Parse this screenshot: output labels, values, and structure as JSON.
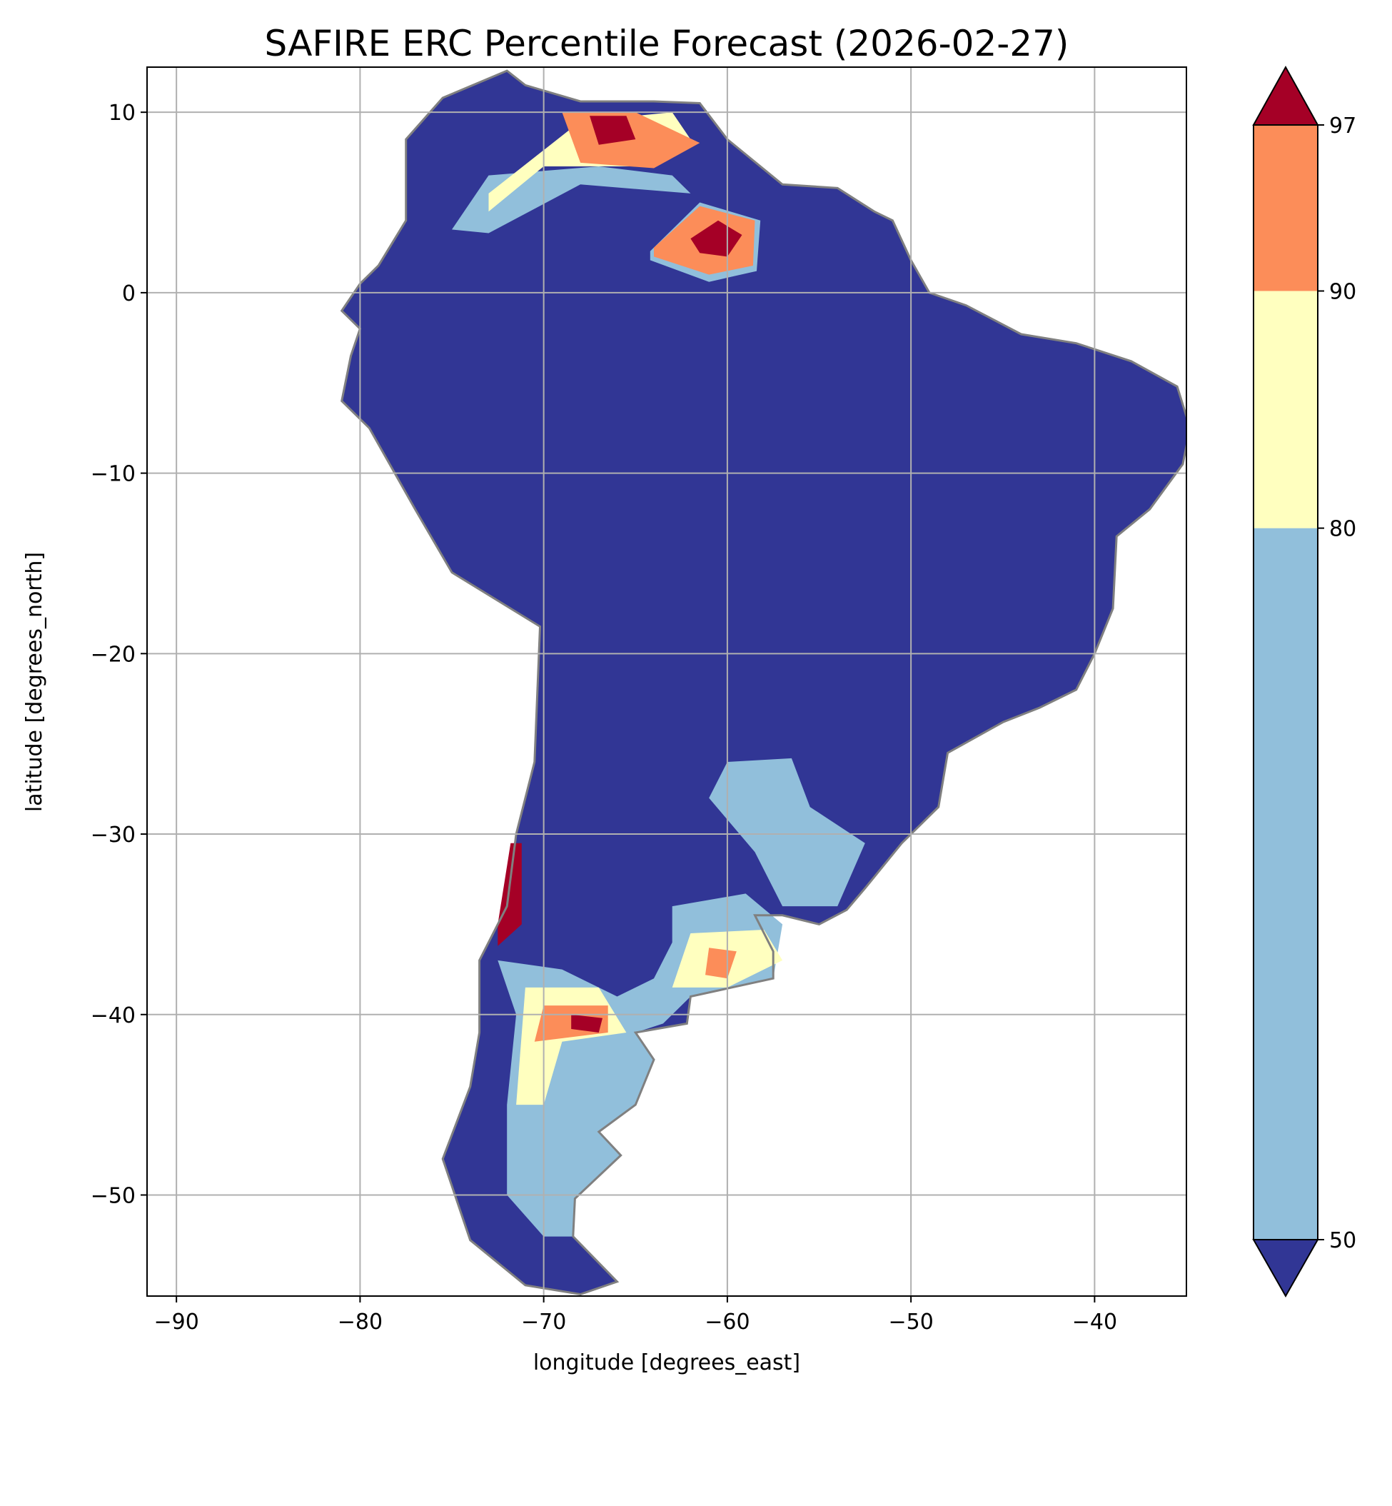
{
  "chart_data": {
    "type": "heatmap",
    "title": "SAFIRE ERC Percentile Forecast (2026-02-27)",
    "xlabel": "longitude [degrees_east]",
    "ylabel": "latitude [degrees_north]",
    "xlim": [
      -91.6,
      -35.0
    ],
    "ylim": [
      -55.6,
      12.5
    ],
    "xticks": [
      -90,
      -80,
      -70,
      -60,
      -50,
      -40
    ],
    "xtick_labels": [
      "−90",
      "−80",
      "−70",
      "−60",
      "−50",
      "−40"
    ],
    "yticks": [
      10,
      0,
      -10,
      -20,
      -30,
      -40,
      -50
    ],
    "ytick_labels": [
      "10",
      "0",
      "−10",
      "−20",
      "−30",
      "−40",
      "−50"
    ],
    "grid": true,
    "colorbar": {
      "levels": [
        50,
        80,
        90,
        97
      ],
      "tick_labels": [
        "50",
        "80",
        "90",
        "97"
      ],
      "extend": "both",
      "colors": {
        "under": "#313695",
        "50-80": "#91bfdb",
        "80-90": "#ffffbf",
        "90-97": "#fc8d59",
        "over": "#a50026"
      }
    },
    "border_color": "#808080",
    "land_outline": [
      [
        -77.5,
        8.5
      ],
      [
        -75.5,
        10.8
      ],
      [
        -72,
        12.3
      ],
      [
        -71,
        11.5
      ],
      [
        -68,
        10.6
      ],
      [
        -64,
        10.6
      ],
      [
        -61.5,
        10.5
      ],
      [
        -60,
        8.5
      ],
      [
        -57,
        6
      ],
      [
        -54,
        5.8
      ],
      [
        -52,
        4.5
      ],
      [
        -51,
        4
      ],
      [
        -50,
        1.8
      ],
      [
        -49,
        0
      ],
      [
        -47,
        -0.7
      ],
      [
        -44,
        -2.3
      ],
      [
        -41,
        -2.8
      ],
      [
        -38,
        -3.8
      ],
      [
        -35.5,
        -5.2
      ],
      [
        -34.8,
        -7.5
      ],
      [
        -35.2,
        -9.5
      ],
      [
        -37,
        -12
      ],
      [
        -38.8,
        -13.5
      ],
      [
        -39,
        -17.5
      ],
      [
        -40,
        -20
      ],
      [
        -41,
        -22
      ],
      [
        -43,
        -23
      ],
      [
        -45,
        -23.8
      ],
      [
        -48,
        -25.5
      ],
      [
        -48.5,
        -28.5
      ],
      [
        -50.5,
        -30.5
      ],
      [
        -52.5,
        -33
      ],
      [
        -53.5,
        -34.2
      ],
      [
        -55,
        -35
      ],
      [
        -57,
        -34.5
      ],
      [
        -58.5,
        -34.5
      ],
      [
        -57.5,
        -36.5
      ],
      [
        -57.5,
        -38
      ],
      [
        -62,
        -39
      ],
      [
        -62.2,
        -40.5
      ],
      [
        -65,
        -41
      ],
      [
        -64,
        -42.5
      ],
      [
        -65,
        -45
      ],
      [
        -67,
        -46.5
      ],
      [
        -65.8,
        -47.8
      ],
      [
        -68.3,
        -50.2
      ],
      [
        -68.4,
        -52.3
      ],
      [
        -66,
        -54.8
      ],
      [
        -68,
        -55.5
      ],
      [
        -71,
        -55
      ],
      [
        -74,
        -52.5
      ],
      [
        -75.5,
        -48
      ],
      [
        -74,
        -44
      ],
      [
        -73.5,
        -41
      ],
      [
        -73.5,
        -37
      ],
      [
        -72,
        -34
      ],
      [
        -71.5,
        -30
      ],
      [
        -70.5,
        -26
      ],
      [
        -70.2,
        -18.5
      ],
      [
        -75,
        -15.5
      ],
      [
        -77,
        -12
      ],
      [
        -79.5,
        -7.5
      ],
      [
        -81,
        -6
      ],
      [
        -80.5,
        -3.5
      ],
      [
        -80,
        -2
      ],
      [
        -81,
        -1
      ],
      [
        -80,
        0.5
      ],
      [
        -79,
        1.5
      ],
      [
        -77.5,
        4
      ],
      [
        -77.5,
        7
      ],
      [
        -77.5,
        8.5
      ]
    ],
    "regions": [
      {
        "name": "llanos-light",
        "class": "50-80",
        "poly": [
          [
            -75,
            3.5
          ],
          [
            -73,
            6.5
          ],
          [
            -67,
            7
          ],
          [
            -63,
            6.5
          ],
          [
            -62,
            5.5
          ],
          [
            -68,
            6
          ],
          [
            -73,
            3.3
          ]
        ]
      },
      {
        "name": "llanos-yellow",
        "class": "80-90",
        "poly": [
          [
            -73,
            5.5
          ],
          [
            -68,
            9.5
          ],
          [
            -63,
            10
          ],
          [
            -62,
            8.5
          ],
          [
            -65,
            7
          ],
          [
            -70,
            7
          ],
          [
            -73,
            4.5
          ]
        ]
      },
      {
        "name": "llanos-orange",
        "class": "90-97",
        "poly": [
          [
            -69,
            10
          ],
          [
            -65,
            10
          ],
          [
            -61.5,
            8.3
          ],
          [
            -64,
            6.9
          ],
          [
            -68,
            7.2
          ]
        ]
      },
      {
        "name": "llanos-red",
        "class": "over",
        "poly": [
          [
            -67.5,
            9.8
          ],
          [
            -65.5,
            9.8
          ],
          [
            -65,
            8.5
          ],
          [
            -67,
            8.2
          ]
        ]
      },
      {
        "name": "roraima-light",
        "class": "50-80",
        "poly": [
          [
            -64.2,
            2.3
          ],
          [
            -61.5,
            5
          ],
          [
            -58.2,
            4
          ],
          [
            -58.4,
            1.2
          ],
          [
            -61,
            0.6
          ],
          [
            -64.2,
            1.8
          ]
        ]
      },
      {
        "name": "roraima-orange",
        "class": "90-97",
        "poly": [
          [
            -64,
            2.5
          ],
          [
            -61.5,
            4.8
          ],
          [
            -58.5,
            4
          ],
          [
            -58.6,
            1.5
          ],
          [
            -61,
            1
          ],
          [
            -64,
            2
          ]
        ]
      },
      {
        "name": "roraima-red",
        "class": "over",
        "poly": [
          [
            -62,
            3
          ],
          [
            -60.5,
            4
          ],
          [
            -59.2,
            3.2
          ],
          [
            -60,
            2
          ],
          [
            -61.5,
            2.2
          ]
        ]
      },
      {
        "name": "chile-red",
        "class": "over",
        "poly": [
          [
            -71.8,
            -30.5
          ],
          [
            -71.2,
            -30.5
          ],
          [
            -71.2,
            -35
          ],
          [
            -72.5,
            -36.2
          ],
          [
            -72.5,
            -35
          ]
        ]
      },
      {
        "name": "uruguay-light",
        "class": "50-80",
        "poly": [
          [
            -60,
            -26
          ],
          [
            -56.5,
            -25.8
          ],
          [
            -55.5,
            -28.5
          ],
          [
            -52.5,
            -30.5
          ],
          [
            -54,
            -34
          ],
          [
            -57,
            -34
          ],
          [
            -58.5,
            -31
          ],
          [
            -61,
            -28
          ]
        ]
      },
      {
        "name": "pampas-light",
        "class": "50-80",
        "poly": [
          [
            -63,
            -34
          ],
          [
            -59,
            -33.3
          ],
          [
            -57,
            -35
          ],
          [
            -57.5,
            -38
          ],
          [
            -62,
            -39
          ],
          [
            -63.5,
            -40.5
          ],
          [
            -65,
            -41
          ],
          [
            -64,
            -42.5
          ],
          [
            -65,
            -45
          ],
          [
            -67,
            -46.5
          ],
          [
            -65.8,
            -47.8
          ],
          [
            -68.3,
            -50.2
          ],
          [
            -68.4,
            -52.3
          ],
          [
            -70,
            -52.3
          ],
          [
            -72,
            -50
          ],
          [
            -72,
            -45
          ],
          [
            -71.5,
            -40
          ],
          [
            -72.5,
            -37
          ],
          [
            -69,
            -37.5
          ],
          [
            -66,
            -39
          ],
          [
            -64,
            -38
          ],
          [
            -63,
            -36
          ]
        ]
      },
      {
        "name": "buenosaires-yellow",
        "class": "80-90",
        "poly": [
          [
            -62,
            -35.5
          ],
          [
            -58,
            -35.3
          ],
          [
            -57,
            -37
          ],
          [
            -60,
            -38.5
          ],
          [
            -63,
            -38.5
          ]
        ]
      },
      {
        "name": "buenosaires-orange",
        "class": "90-97",
        "poly": [
          [
            -61,
            -36.3
          ],
          [
            -59.5,
            -36.5
          ],
          [
            -60,
            -38
          ],
          [
            -61.2,
            -37.8
          ]
        ]
      },
      {
        "name": "patagonia-yellow",
        "class": "80-90",
        "poly": [
          [
            -71,
            -38.5
          ],
          [
            -67,
            -38.5
          ],
          [
            -65.5,
            -41
          ],
          [
            -69,
            -41.5
          ],
          [
            -70,
            -45
          ],
          [
            -71.5,
            -45
          ]
        ]
      },
      {
        "name": "patagonia-orange",
        "class": "90-97",
        "poly": [
          [
            -70,
            -39.5
          ],
          [
            -66.5,
            -39.5
          ],
          [
            -66.5,
            -41
          ],
          [
            -70.5,
            -41.5
          ]
        ]
      },
      {
        "name": "patagonia-red",
        "class": "over",
        "poly": [
          [
            -68.5,
            -40
          ],
          [
            -66.8,
            -40.2
          ],
          [
            -67,
            -41
          ],
          [
            -68.5,
            -40.8
          ]
        ]
      }
    ]
  }
}
